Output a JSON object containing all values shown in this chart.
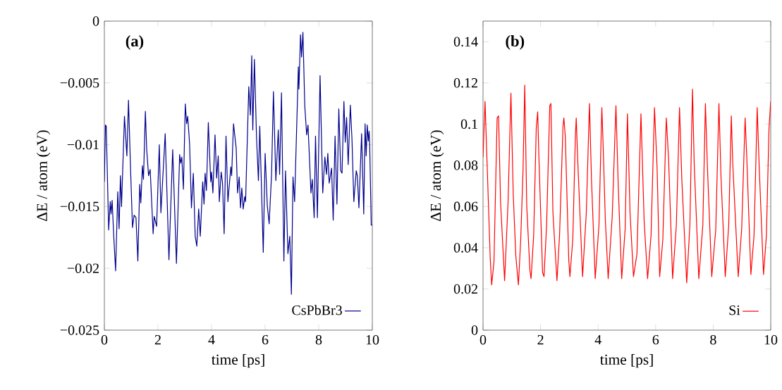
{
  "chart_data": [
    {
      "type": "line",
      "xlabel": "time [ps]",
      "ylabel": "ΔE / atom (eV)",
      "annotations": [
        "(a)"
      ],
      "legend": "bottom right",
      "xlim": [
        0,
        10
      ],
      "ylim": [
        -0.025,
        0
      ],
      "xticks": [
        0,
        2,
        4,
        6,
        8,
        10
      ],
      "yticks": [
        {
          "value": -0.025,
          "label": "−0.025"
        },
        {
          "value": -0.02,
          "label": "−0.02"
        },
        {
          "value": -0.015,
          "label": "−0.015"
        },
        {
          "value": -0.01,
          "label": "−0.01"
        },
        {
          "value": -0.005,
          "label": "−0.005"
        },
        0
      ],
      "series": [
        {
          "name": "CsPbBr3",
          "color": "#00008b",
          "x": [
            0,
            0.04,
            0.07,
            0.16,
            0.22,
            0.25,
            0.29,
            0.35,
            0.42,
            0.5,
            0.55,
            0.6,
            0.64,
            0.75,
            0.84,
            0.9,
            0.98,
            1.05,
            1.11,
            1.18,
            1.25,
            1.32,
            1.36,
            1.42,
            1.46,
            1.53,
            1.58,
            1.65,
            1.71,
            1.82,
            1.86,
            1.95,
            2.05,
            2.11,
            2.27,
            2.41,
            2.55,
            2.69,
            2.81,
            2.85,
            2.89,
            2.95,
            3.02,
            3.07,
            3.11,
            3.18,
            3.25,
            3.32,
            3.39,
            3.45,
            3.52,
            3.58,
            3.67,
            3.72,
            3.76,
            3.81,
            3.88,
            3.97,
            4.0,
            4.05,
            4.13,
            4.19,
            4.25,
            4.29,
            4.36,
            4.41,
            4.47,
            4.54,
            4.61,
            4.72,
            4.75,
            4.82,
            4.92,
            4.97,
            5.03,
            5.08,
            5.13,
            5.18,
            5.24,
            5.27,
            5.39,
            5.45,
            5.5,
            5.54,
            5.6,
            5.68,
            5.75,
            5.8,
            5.93,
            6.0,
            6.08,
            6.15,
            6.24,
            6.31,
            6.4,
            6.49,
            6.54,
            6.61,
            6.7,
            6.76,
            6.85,
            6.92,
            6.98,
            7.04,
            7.1,
            7.24,
            7.26,
            7.32,
            7.36,
            7.41,
            7.48,
            7.55,
            7.6,
            7.71,
            7.76,
            7.83,
            7.88,
            7.95,
            8.05,
            8.15,
            8.23,
            8.29,
            8.34,
            8.39,
            8.48,
            8.54,
            8.61,
            8.68,
            8.75,
            8.82,
            8.87,
            8.94,
            8.99,
            9.04,
            9.1,
            9.18,
            9.24,
            9.31,
            9.4,
            9.44,
            9.5,
            9.6,
            9.68,
            9.73,
            9.77,
            9.81,
            9.85,
            9.88,
            9.9,
            9.96,
            10
          ],
          "values": [
            -0.013,
            -0.0084,
            -0.0085,
            -0.0169,
            -0.0146,
            -0.0156,
            -0.0145,
            -0.0174,
            -0.0202,
            -0.0138,
            -0.0168,
            -0.0125,
            -0.015,
            -0.0077,
            -0.0109,
            -0.0064,
            -0.0121,
            -0.0167,
            -0.0157,
            -0.0159,
            -0.0194,
            -0.0132,
            -0.0147,
            -0.0117,
            -0.0128,
            -0.0073,
            -0.0104,
            -0.0125,
            -0.012,
            -0.0172,
            -0.0158,
            -0.0166,
            -0.01,
            -0.0155,
            -0.0091,
            -0.0193,
            -0.0104,
            -0.0196,
            -0.0108,
            -0.0115,
            -0.011,
            -0.0136,
            -0.0067,
            -0.0083,
            -0.0077,
            -0.0099,
            -0.0151,
            -0.0123,
            -0.0174,
            -0.0182,
            -0.0152,
            -0.0174,
            -0.013,
            -0.0148,
            -0.0123,
            -0.0137,
            -0.0082,
            -0.013,
            -0.0122,
            -0.0139,
            -0.0092,
            -0.0127,
            -0.0109,
            -0.0146,
            -0.0122,
            -0.0131,
            -0.0172,
            -0.0093,
            -0.0146,
            -0.0118,
            -0.0125,
            -0.0083,
            -0.0103,
            -0.0139,
            -0.0126,
            -0.0151,
            -0.0135,
            -0.0152,
            -0.0142,
            -0.0146,
            -0.0053,
            -0.0076,
            -0.0028,
            -0.0088,
            -0.0031,
            -0.0095,
            -0.0129,
            -0.0085,
            -0.0187,
            -0.0107,
            -0.0149,
            -0.0164,
            -0.0124,
            -0.0057,
            -0.0129,
            -0.0088,
            -0.0124,
            -0.0058,
            -0.0194,
            -0.0121,
            -0.0188,
            -0.0174,
            -0.0221,
            -0.0126,
            -0.0146,
            -0.0037,
            -0.0055,
            -0.0011,
            -0.0029,
            -0.0009,
            -0.0069,
            -0.0092,
            -0.0084,
            -0.0139,
            -0.0128,
            -0.0159,
            -0.0093,
            -0.0159,
            -0.0044,
            -0.0139,
            -0.011,
            -0.0124,
            -0.0107,
            -0.0131,
            -0.0119,
            -0.0161,
            -0.0093,
            -0.0148,
            -0.0071,
            -0.0121,
            -0.0123,
            -0.0065,
            -0.0098,
            -0.0078,
            -0.0116,
            -0.0068,
            -0.0095,
            -0.0146,
            -0.0121,
            -0.0125,
            -0.0151,
            -0.0091,
            -0.0156,
            -0.0083,
            -0.0109,
            -0.0084,
            -0.0097,
            -0.0089,
            -0.0098,
            -0.0165,
            -0.0165
          ]
        }
      ]
    },
    {
      "type": "line",
      "xlabel": "time [ps]",
      "ylabel": "ΔE / atom (eV)",
      "annotations": [
        "(b)"
      ],
      "legend": "bottom right",
      "xlim": [
        0,
        10
      ],
      "ylim": [
        0,
        0.15
      ],
      "xticks": [
        0,
        2,
        4,
        6,
        8,
        10
      ],
      "yticks": [
        0,
        0.02,
        0.04,
        0.06,
        0.08,
        0.1,
        0.12,
        0.14
      ],
      "series": [
        {
          "name": "Si",
          "color": "#ff0000",
          "x": [
            0,
            0.07,
            0.25,
            0.3,
            0.38,
            0.49,
            0.54,
            0.61,
            0.75,
            0.87,
            0.97,
            1.05,
            1.14,
            1.23,
            1.31,
            1.39,
            1.45,
            1.52,
            1.63,
            1.67,
            1.76,
            1.85,
            1.9,
            1.94,
            2.07,
            2.12,
            2.21,
            2.32,
            2.36,
            2.43,
            2.57,
            2.66,
            2.78,
            2.81,
            2.86,
            2.98,
            3.02,
            3.12,
            3.21,
            3.24,
            3.29,
            3.46,
            3.59,
            3.7,
            3.77,
            3.9,
            4.03,
            4.13,
            4.17,
            4.25,
            4.35,
            4.49,
            4.62,
            4.7,
            4.82,
            4.94,
            5.02,
            5.11,
            5.23,
            5.35,
            5.49,
            5.6,
            5.72,
            5.84,
            5.96,
            6.05,
            6.14,
            6.25,
            6.37,
            6.45,
            6.59,
            6.72,
            6.83,
            6.91,
            7.08,
            7.19,
            7.28,
            7.34,
            7.5,
            7.64,
            7.73,
            7.8,
            7.95,
            8.09,
            8.2,
            8.27,
            8.42,
            8.54,
            8.63,
            8.68,
            8.87,
            8.99,
            9.11,
            9.17,
            9.31,
            9.42,
            9.53,
            9.6,
            9.75,
            9.85,
            9.94,
            10
          ],
          "values": [
            0.084,
            0.111,
            0.035,
            0.022,
            0.033,
            0.103,
            0.104,
            0.062,
            0.024,
            0.062,
            0.115,
            0.066,
            0.036,
            0.022,
            0.044,
            0.077,
            0.119,
            0.06,
            0.029,
            0.025,
            0.046,
            0.098,
            0.106,
            0.085,
            0.028,
            0.026,
            0.051,
            0.109,
            0.11,
            0.057,
            0.024,
            0.046,
            0.099,
            0.103,
            0.094,
            0.034,
            0.026,
            0.044,
            0.094,
            0.103,
            0.083,
            0.026,
            0.057,
            0.11,
            0.073,
            0.025,
            0.051,
            0.108,
            0.092,
            0.054,
            0.025,
            0.055,
            0.109,
            0.07,
            0.025,
            0.049,
            0.105,
            0.057,
            0.026,
            0.037,
            0.105,
            0.053,
            0.025,
            0.046,
            0.108,
            0.079,
            0.026,
            0.044,
            0.103,
            0.083,
            0.025,
            0.051,
            0.108,
            0.073,
            0.023,
            0.051,
            0.117,
            0.081,
            0.025,
            0.051,
            0.11,
            0.079,
            0.026,
            0.049,
            0.11,
            0.075,
            0.026,
            0.051,
            0.104,
            0.081,
            0.026,
            0.049,
            0.103,
            0.083,
            0.027,
            0.046,
            0.108,
            0.079,
            0.027,
            0.046,
            0.098,
            0.111
          ]
        }
      ]
    }
  ]
}
